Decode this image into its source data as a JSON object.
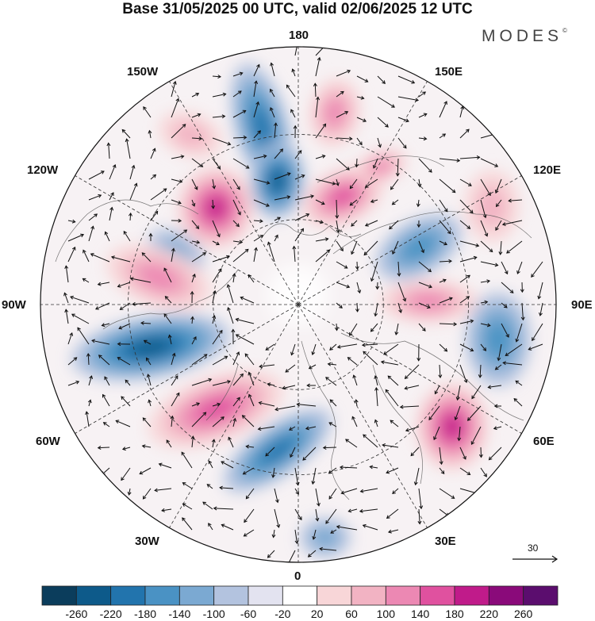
{
  "title": "Base 31/05/2025 00 UTC, valid 02/06/2025 12 UTC",
  "brand": "MODES",
  "brand_mark": "©",
  "longitude_labels": {
    "l180": "180",
    "l150e": "150E",
    "l120e": "120E",
    "l90e": "90E",
    "l60e": "60E",
    "l30e": "30E",
    "l0": "0",
    "l30w": "30W",
    "l60w": "60W",
    "l90w": "90W",
    "l120w": "120W",
    "l150w": "150W"
  },
  "reference_vector": {
    "label": "30"
  },
  "colorbar": {
    "labels": [
      "-260",
      "-220",
      "-180",
      "-140",
      "-100",
      "-60",
      "-20",
      "20",
      "60",
      "100",
      "140",
      "180",
      "220",
      "260"
    ],
    "colors": [
      "#0b3d5c",
      "#0d5a8a",
      "#2274ad",
      "#4a92c4",
      "#7ba9d2",
      "#b3c3df",
      "#e3e3f0",
      "#ffffff",
      "#f8d6d8",
      "#f2b3c3",
      "#ec88b3",
      "#e0519f",
      "#c01b8a",
      "#8a0a7a",
      "#5b0d6e"
    ]
  },
  "anomaly_centers": [
    {
      "sign": "negative",
      "level": 3
    },
    {
      "sign": "negative",
      "level": 4
    },
    {
      "sign": "negative",
      "level": 4
    },
    {
      "sign": "negative",
      "level": 2
    },
    {
      "sign": "negative",
      "level": 3
    },
    {
      "sign": "negative",
      "level": 2
    },
    {
      "sign": "negative",
      "level": 1
    },
    {
      "sign": "negative",
      "level": 1
    },
    {
      "sign": "positive",
      "level": 4
    },
    {
      "sign": "positive",
      "level": 3
    },
    {
      "sign": "positive",
      "level": 2
    },
    {
      "sign": "positive",
      "level": 2
    },
    {
      "sign": "positive",
      "level": 3
    },
    {
      "sign": "positive",
      "level": 4
    },
    {
      "sign": "positive",
      "level": 2
    },
    {
      "sign": "positive",
      "level": 2
    },
    {
      "sign": "positive",
      "level": 1
    },
    {
      "sign": "positive",
      "level": 1
    }
  ]
}
